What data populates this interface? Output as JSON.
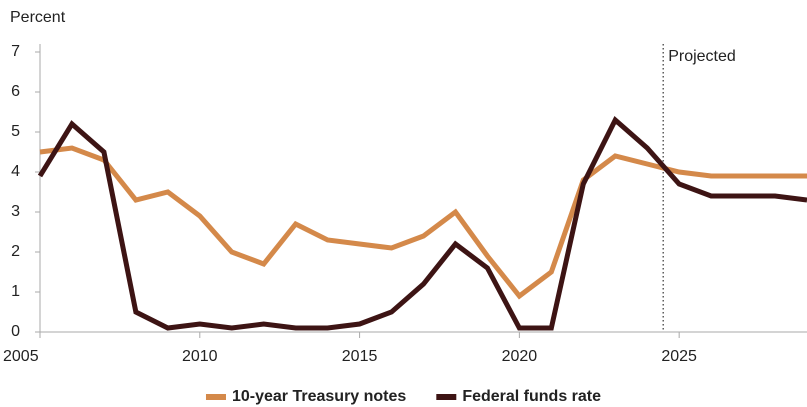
{
  "chart_data": {
    "type": "line",
    "y_label": "Percent",
    "x": [
      2005,
      2006,
      2007,
      2008,
      2009,
      2010,
      2011,
      2012,
      2013,
      2014,
      2015,
      2016,
      2017,
      2018,
      2019,
      2020,
      2021,
      2022,
      2023,
      2024,
      2025,
      2026,
      2027,
      2028,
      2029
    ],
    "series": [
      {
        "name": "10-year Treasury notes",
        "color": "#d4894a",
        "values": [
          4.5,
          4.6,
          4.3,
          3.3,
          3.5,
          2.9,
          2.0,
          1.7,
          2.7,
          2.3,
          2.2,
          2.1,
          2.4,
          3.0,
          1.9,
          0.9,
          1.5,
          3.8,
          4.4,
          4.2,
          4.0,
          3.9,
          3.9,
          3.9,
          3.9
        ]
      },
      {
        "name": "Federal funds rate",
        "color": "#3d1414",
        "values": [
          3.9,
          5.2,
          4.5,
          0.5,
          0.1,
          0.2,
          0.1,
          0.2,
          0.1,
          0.1,
          0.2,
          0.5,
          1.2,
          2.2,
          1.6,
          0.1,
          0.1,
          3.7,
          5.3,
          4.6,
          3.7,
          3.4,
          3.4,
          3.4,
          3.3
        ]
      }
    ],
    "xlim": [
      2005,
      2029
    ],
    "ylim": [
      0,
      7
    ],
    "xticks": [
      2005,
      2010,
      2015,
      2020,
      2025
    ],
    "yticks": [
      0,
      1,
      2,
      3,
      4,
      5,
      6,
      7
    ],
    "annotations": [
      {
        "label": "Projected",
        "x": 2024.5
      }
    ],
    "legend": "bottom",
    "grid": false
  }
}
